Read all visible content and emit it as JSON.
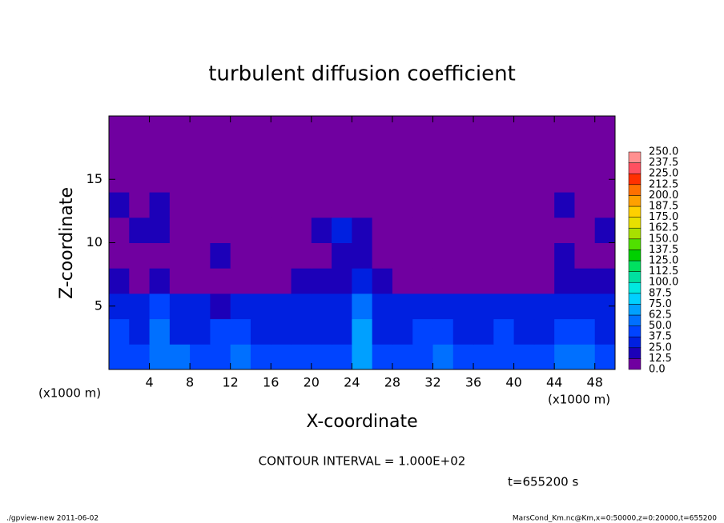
{
  "chart_data": {
    "type": "contour",
    "title": "turbulent diffusion coefficient",
    "x_label": "X-coordinate",
    "y_label": "Z-coordinate",
    "x_unit_left": "(x1000 m)",
    "x_unit_right": "(x1000 m)",
    "xlim": [
      0,
      50
    ],
    "ylim": [
      0,
      20
    ],
    "xticks": [
      4,
      8,
      12,
      16,
      20,
      24,
      28,
      32,
      36,
      40,
      44,
      48
    ],
    "yticks": [
      5,
      10,
      15
    ],
    "levels": [
      {
        "value": 0,
        "label": "0.0"
      },
      12.5,
      {
        "value": 25,
        "label": "25.0"
      },
      37.5,
      {
        "value": 50,
        "label": "50.0"
      },
      62.5,
      {
        "value": 75,
        "label": "75.0"
      },
      87.5,
      {
        "value": 100,
        "label": "100.0"
      },
      112.5,
      {
        "value": 125,
        "label": "125.0"
      },
      137.5,
      {
        "value": 150,
        "label": "150.0"
      },
      162.5,
      {
        "value": 175,
        "label": "175.0"
      },
      187.5,
      {
        "value": 200,
        "label": "200.0"
      },
      212.5,
      {
        "value": 225,
        "label": "225.0"
      },
      237.5,
      {
        "value": 250,
        "label": "250.0"
      }
    ],
    "colors": [
      "#7000a0",
      "#1c00b8",
      "#0020e0",
      "#0044ff",
      "#0070ff",
      "#00a0ff",
      "#00d0ff",
      "#00e8e0",
      "#00e0a0",
      "#00e060",
      "#00d000",
      "#50e000",
      "#a8e000",
      "#e8e000",
      "#ffd000",
      "#ffa000",
      "#ff7000",
      "#ff3000",
      "#ff5060",
      "#ff9090"
    ],
    "z": [
      [
        37.5,
        37.5,
        50,
        50,
        37.5,
        37.5,
        50,
        37.5,
        37.5,
        37.5,
        37.5,
        37.5,
        62.5,
        37.5,
        37.5,
        37.5,
        50,
        37.5,
        37.5,
        37.5,
        37.5,
        37.5,
        50,
        50,
        37.5
      ],
      [
        37.5,
        25,
        50,
        25,
        25,
        37.5,
        37.5,
        25,
        25,
        25,
        25,
        25,
        62.5,
        25,
        25,
        37.5,
        37.5,
        25,
        25,
        37.5,
        25,
        25,
        37.5,
        37.5,
        25
      ],
      [
        25,
        25,
        37.5,
        25,
        25,
        12.5,
        25,
        25,
        25,
        25,
        25,
        25,
        50,
        25,
        25,
        25,
        25,
        25,
        25,
        25,
        25,
        25,
        25,
        25,
        25
      ],
      [
        12.5,
        0,
        12.5,
        0,
        0,
        0,
        0,
        0,
        0,
        12.5,
        12.5,
        12.5,
        25,
        12.5,
        0,
        0,
        0,
        0,
        0,
        0,
        0,
        0,
        12.5,
        12.5,
        12.5
      ],
      [
        0,
        0,
        0,
        0,
        0,
        12.5,
        0,
        0,
        0,
        0,
        0,
        12.5,
        12.5,
        0,
        0,
        0,
        0,
        0,
        0,
        0,
        0,
        0,
        12.5,
        0,
        0
      ],
      [
        0,
        12.5,
        12.5,
        0,
        0,
        0,
        0,
        0,
        0,
        0,
        12.5,
        25,
        12.5,
        0,
        0,
        0,
        0,
        0,
        0,
        0,
        0,
        0,
        0,
        0,
        12.5
      ],
      [
        12.5,
        0,
        12.5,
        0,
        0,
        0,
        0,
        0,
        0,
        0,
        0,
        0,
        0,
        0,
        0,
        0,
        0,
        0,
        0,
        0,
        0,
        0,
        12.5,
        0,
        0
      ],
      [
        0,
        0,
        0,
        0,
        0,
        0,
        0,
        0,
        0,
        0,
        0,
        0,
        0,
        0,
        0,
        0,
        0,
        0,
        0,
        0,
        0,
        0,
        0,
        0,
        0
      ],
      [
        0,
        0,
        0,
        0,
        0,
        0,
        0,
        0,
        0,
        0,
        0,
        0,
        0,
        0,
        0,
        0,
        0,
        0,
        0,
        0,
        0,
        0,
        0,
        0,
        0
      ],
      [
        0,
        0,
        0,
        0,
        0,
        0,
        0,
        0,
        0,
        0,
        0,
        0,
        0,
        0,
        0,
        0,
        0,
        0,
        0,
        0,
        0,
        0,
        0,
        0,
        0
      ]
    ],
    "contour_interval": "CONTOUR INTERVAL = 1.000E+02",
    "time_label": "t=655200 s",
    "footer_left": "./gpview-new  2011-06-02",
    "footer_right": "MarsCond_Km.nc@Km,x=0:50000,z=0:20000,t=655200"
  }
}
